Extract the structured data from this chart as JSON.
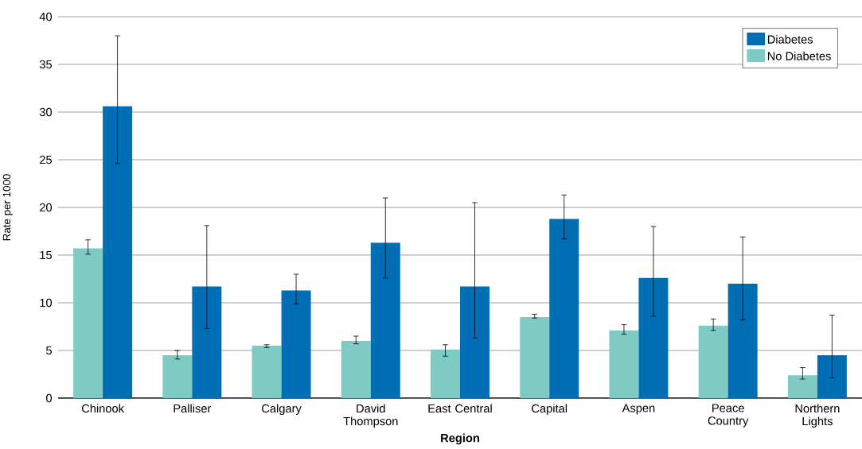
{
  "chart_data": {
    "type": "bar",
    "xlabel": "Region",
    "ylabel": "Rate per 1000",
    "categories": [
      "Chinook",
      "Palliser",
      "Calgary",
      "David Thompson",
      "East Central",
      "Capital",
      "Aspen",
      "Peace Country",
      "Northern Lights"
    ],
    "series": [
      {
        "name": "No Diabetes",
        "color": "#7ecbc6",
        "values": [
          15.7,
          4.5,
          5.5,
          6.0,
          5.1,
          8.5,
          7.1,
          7.6,
          2.4
        ],
        "errors": [
          [
            15.1,
            16.6
          ],
          [
            4.1,
            5.0
          ],
          [
            5.3,
            5.6
          ],
          [
            5.7,
            6.5
          ],
          [
            4.4,
            5.6
          ],
          [
            8.4,
            8.8
          ],
          [
            6.7,
            7.7
          ],
          [
            7.1,
            8.3
          ],
          [
            2.0,
            3.2
          ]
        ]
      },
      {
        "name": "Diabetes",
        "color": "#006eb5",
        "values": [
          30.6,
          11.7,
          11.3,
          16.3,
          11.7,
          18.8,
          12.6,
          12.0,
          4.5
        ],
        "errors": [
          [
            24.6,
            38.0
          ],
          [
            7.3,
            18.1
          ],
          [
            9.9,
            13.0
          ],
          [
            12.6,
            21.0
          ],
          [
            6.3,
            20.5
          ],
          [
            16.7,
            21.3
          ],
          [
            8.6,
            18.0
          ],
          [
            8.2,
            16.9
          ],
          [
            2.1,
            8.7
          ]
        ]
      }
    ],
    "ylim": [
      0,
      40
    ],
    "yticks": [
      0,
      5,
      10,
      15,
      20,
      25,
      30,
      35,
      40
    ],
    "grid": "y",
    "legend": "top right"
  }
}
